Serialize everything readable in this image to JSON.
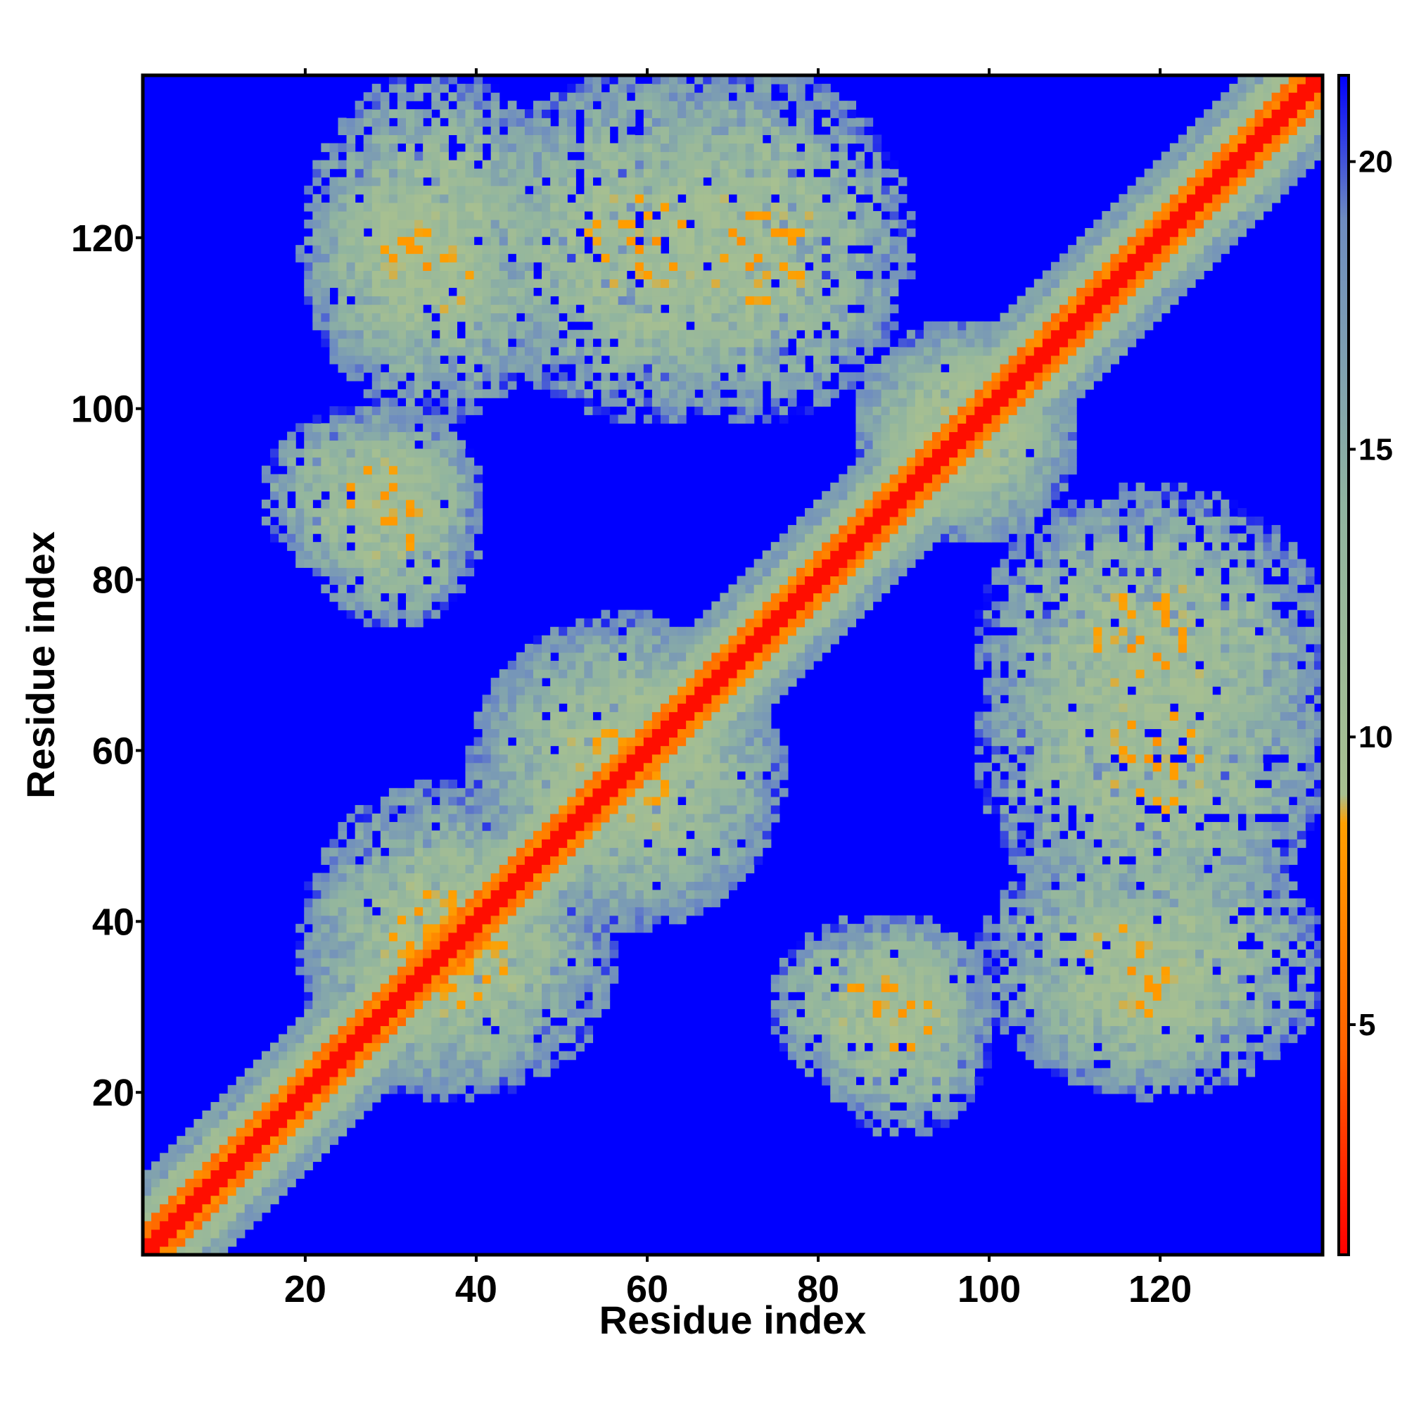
{
  "chart_data": {
    "type": "heatmap",
    "title": "",
    "xlabel": "Residue index",
    "ylabel": "Residue index",
    "xlim": [
      1,
      139
    ],
    "ylim": [
      1,
      139
    ],
    "x_ticks": [
      20,
      40,
      60,
      80,
      100,
      120
    ],
    "y_ticks": [
      20,
      40,
      60,
      80,
      100,
      120
    ],
    "colorbar": {
      "range": [
        1,
        21.5
      ],
      "ticks": [
        5,
        10,
        15,
        20
      ],
      "stops": [
        {
          "value": 1,
          "color": "#ff0000"
        },
        {
          "value": 4.5,
          "color": "#ff6000"
        },
        {
          "value": 8.5,
          "color": "#ffa000"
        },
        {
          "value": 9.0,
          "color": "#a8c090"
        },
        {
          "value": 14,
          "color": "#90b4a0"
        },
        {
          "value": 19,
          "color": "#6e8cc0"
        },
        {
          "value": 21.5,
          "color": "#0000ff"
        }
      ]
    },
    "matrix_size": 139,
    "background_value": 21.5,
    "diagonal_band": {
      "core_value": 1.5,
      "inner_value": 5,
      "shoulder_value": 10,
      "halo_value": 15,
      "background_value": 21.5
    },
    "contact_regions": [
      {
        "residues_x": [
          20,
          50
        ],
        "residues_y": [
          100,
          139
        ],
        "min_value": 6
      },
      {
        "residues_x": [
          55,
          90
        ],
        "residues_y": [
          100,
          139
        ],
        "min_value": 6
      },
      {
        "residues_x": [
          20,
          40
        ],
        "residues_y": [
          75,
          100
        ],
        "min_value": 6
      },
      {
        "residues_x": [
          40,
          75
        ],
        "residues_y": [
          40,
          75
        ],
        "min_value": 6
      },
      {
        "residues_x": [
          20,
          50
        ],
        "residues_y": [
          20,
          55
        ],
        "min_value": 6
      },
      {
        "residues_x": [
          85,
          110
        ],
        "residues_y": [
          85,
          110
        ],
        "min_value": 6
      },
      {
        "residues_x": [
          100,
          139
        ],
        "residues_y": [
          40,
          80
        ],
        "min_value": 6
      },
      {
        "residues_x": [
          80,
          100
        ],
        "residues_y": [
          15,
          40
        ],
        "min_value": 6
      },
      {
        "residues_x": [
          105,
          130
        ],
        "residues_y": [
          20,
          45
        ],
        "min_value": 6
      }
    ]
  }
}
